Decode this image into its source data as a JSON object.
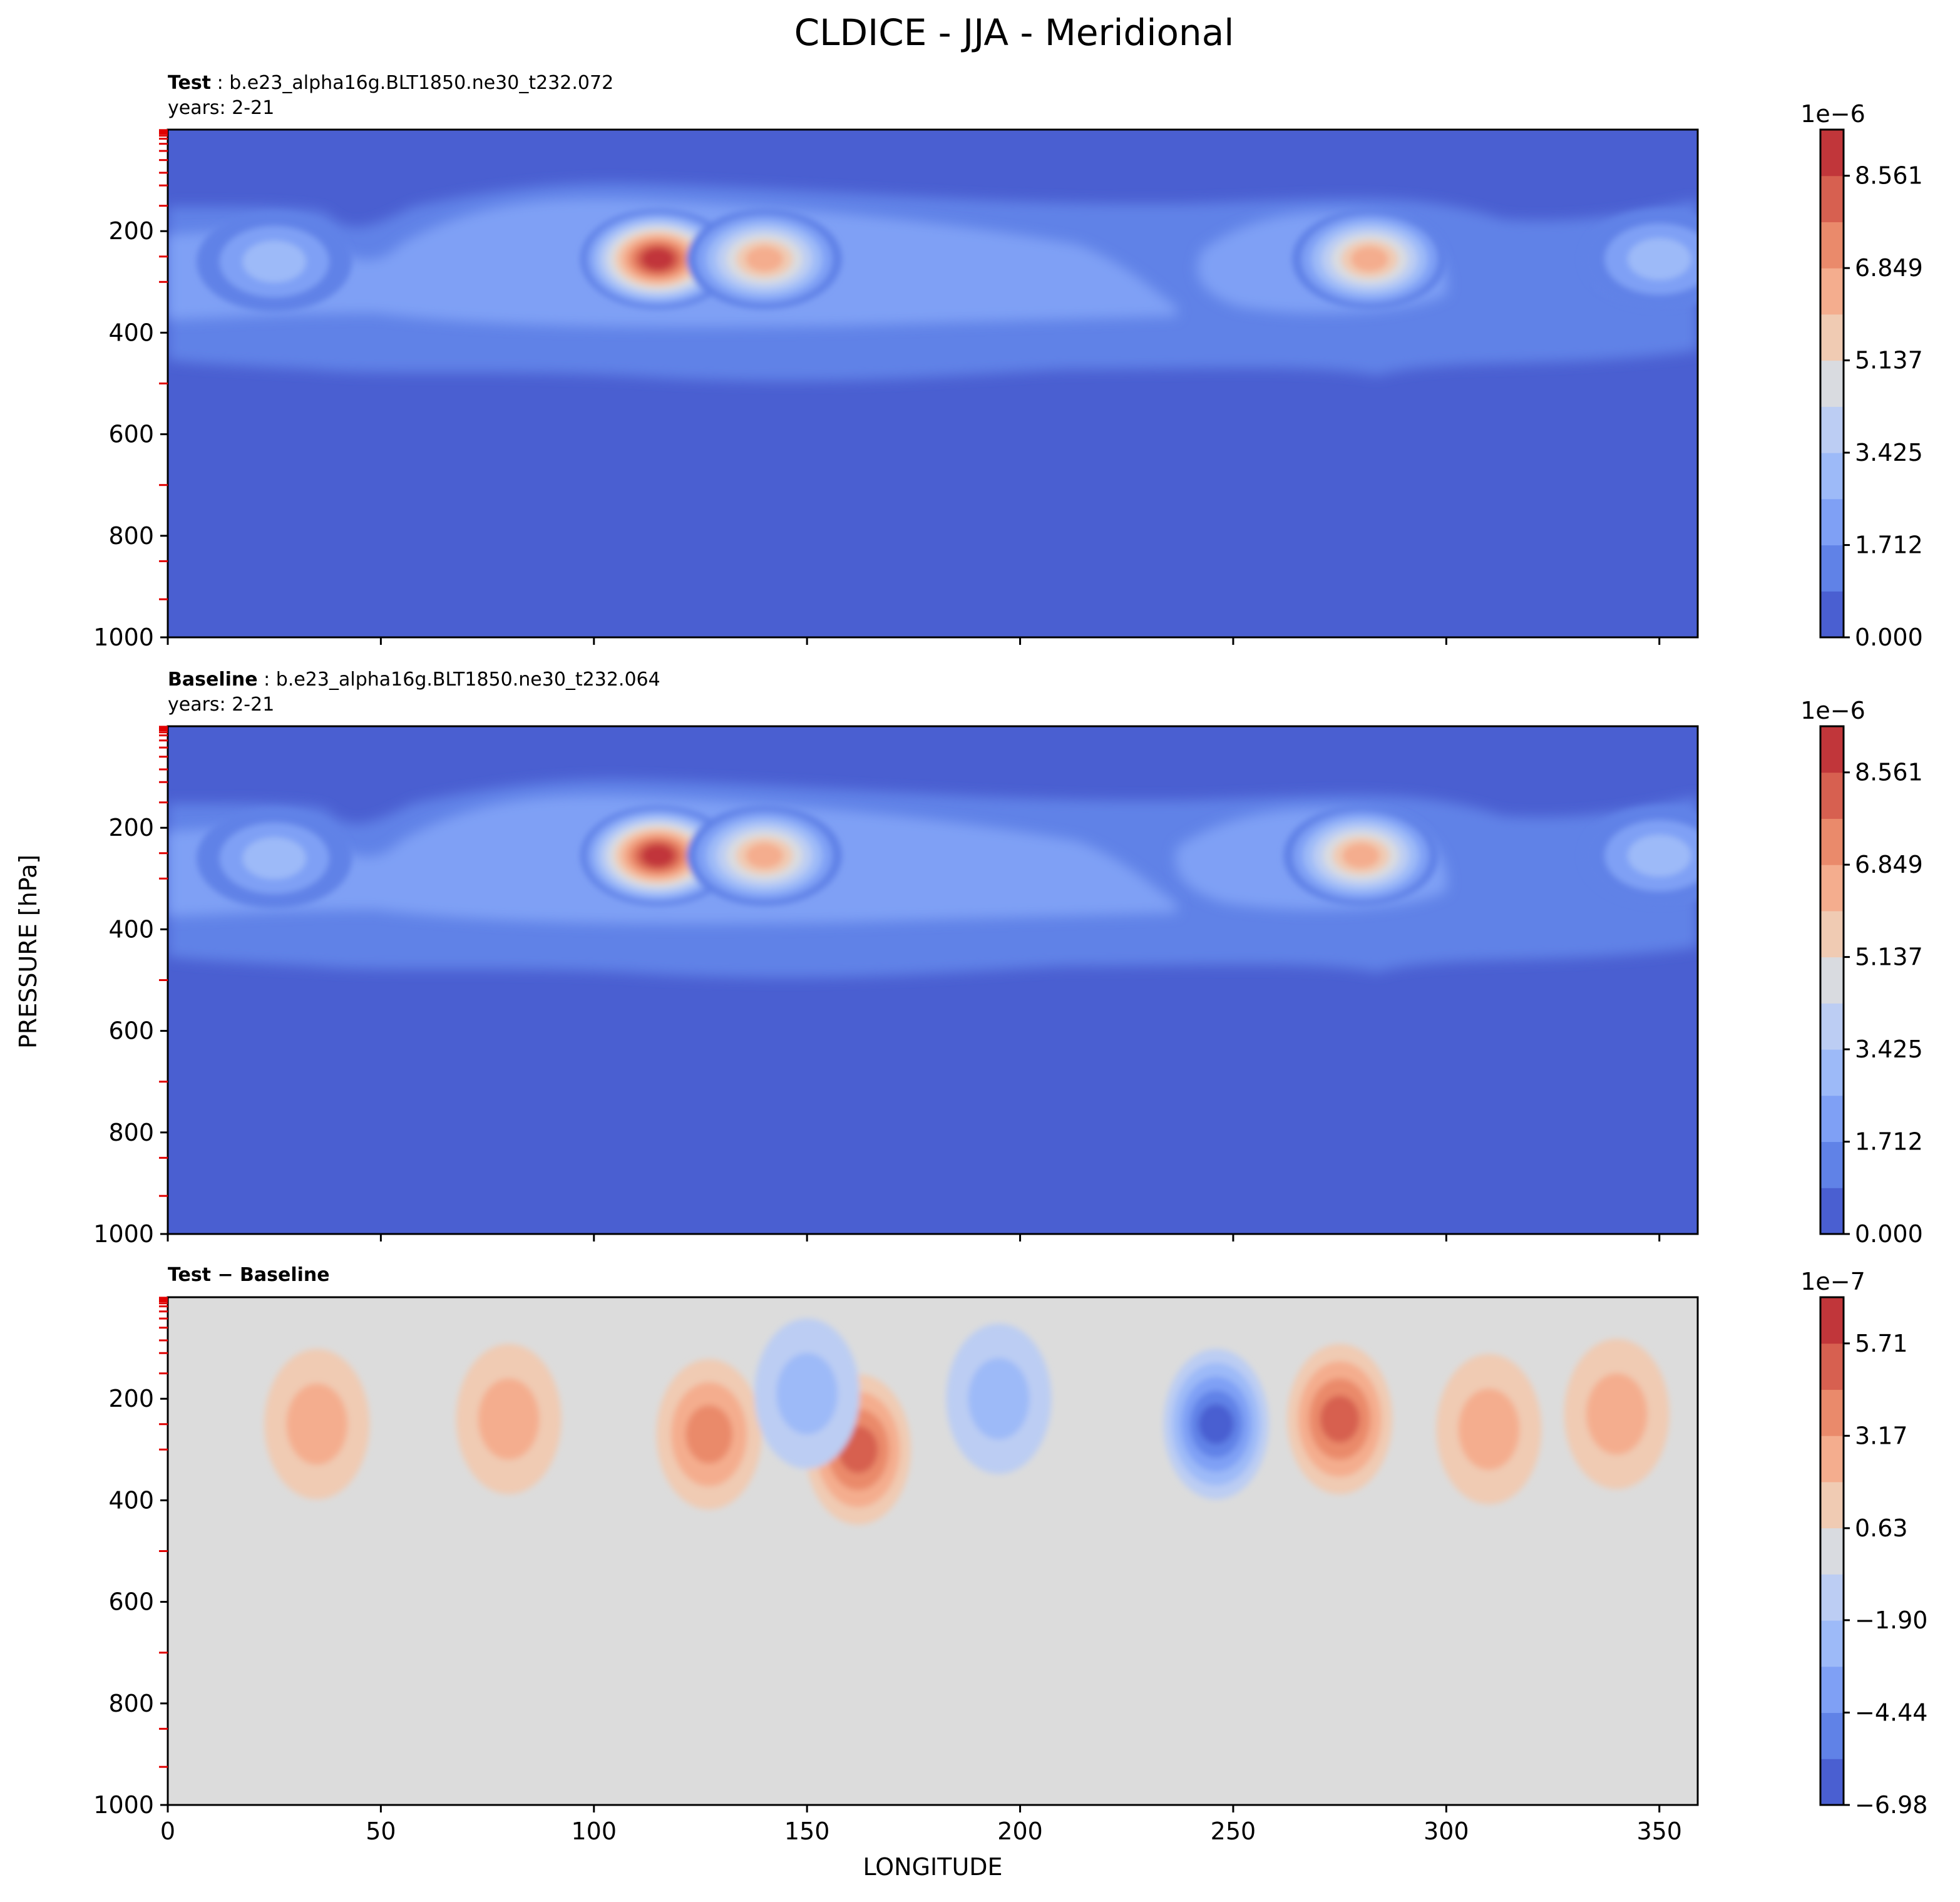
{
  "figure": {
    "title": "CLDICE - JJA - Meridional",
    "ylabel": "PRESSURE [hPa]",
    "xlabel": "LONGITUDE"
  },
  "chart_data": [
    {
      "type": "heatmap",
      "panel": "Test",
      "label_bold": "Test",
      "label_rest": " : b.e23_alpha16g.BLT1850.ne30_t232.072",
      "years": "years: 2-21",
      "xlim": [
        0,
        359
      ],
      "ylim": [
        1000,
        0
      ],
      "xticks": [
        "0",
        "50",
        "100",
        "150",
        "200",
        "250",
        "300",
        "350"
      ],
      "yticks": [
        "200",
        "400",
        "600",
        "800",
        "1000"
      ],
      "colorbar": {
        "exponent": "1e−6",
        "min": 0,
        "max": 9.417,
        "levels": 11,
        "ticks": [
          "0.000",
          "1.712",
          "3.425",
          "5.137",
          "6.849",
          "8.561"
        ],
        "tick_values": [
          0,
          1.712,
          3.425,
          5.137,
          6.849,
          8.561
        ],
        "colors": [
          "#4a5fd1",
          "#6082e7",
          "#7fa0f5",
          "#9dbaf8",
          "#bccdf3",
          "#d9dbe0",
          "#f0cbb3",
          "#f4ad8e",
          "#ea8a6b",
          "#d76050",
          "#c1363a"
        ]
      },
      "features": [
        {
          "lon": 115,
          "p": 255,
          "value": 9.0
        },
        {
          "lon": 140,
          "p": 255,
          "value": 6.5
        },
        {
          "lon": 282,
          "p": 255,
          "value": 6.2
        },
        {
          "lon": 25,
          "p": 260,
          "value": 3.2
        },
        {
          "lon": 350,
          "p": 255,
          "value": 3.0
        }
      ]
    },
    {
      "type": "heatmap",
      "panel": "Baseline",
      "label_bold": "Baseline",
      "label_rest": " : b.e23_alpha16g.BLT1850.ne30_t232.064",
      "years": "years: 2-21",
      "xlim": [
        0,
        359
      ],
      "ylim": [
        1000,
        0
      ],
      "xticks": [
        "0",
        "50",
        "100",
        "150",
        "200",
        "250",
        "300",
        "350"
      ],
      "yticks": [
        "200",
        "400",
        "600",
        "800",
        "1000"
      ],
      "colorbar": {
        "exponent": "1e−6",
        "min": 0,
        "max": 9.417,
        "levels": 11,
        "ticks": [
          "0.000",
          "1.712",
          "3.425",
          "5.137",
          "6.849",
          "8.561"
        ],
        "tick_values": [
          0,
          1.712,
          3.425,
          5.137,
          6.849,
          8.561
        ],
        "colors": [
          "#4a5fd1",
          "#6082e7",
          "#7fa0f5",
          "#9dbaf8",
          "#bccdf3",
          "#d9dbe0",
          "#f0cbb3",
          "#f4ad8e",
          "#ea8a6b",
          "#d76050",
          "#c1363a"
        ]
      },
      "features": [
        {
          "lon": 115,
          "p": 255,
          "value": 9.0
        },
        {
          "lon": 140,
          "p": 255,
          "value": 6.5
        },
        {
          "lon": 280,
          "p": 255,
          "value": 6.0
        },
        {
          "lon": 25,
          "p": 260,
          "value": 3.2
        },
        {
          "lon": 350,
          "p": 255,
          "value": 3.0
        }
      ]
    },
    {
      "type": "heatmap",
      "panel": "Test - Baseline",
      "label_bold": "Test − Baseline",
      "xlim": [
        0,
        359
      ],
      "ylim": [
        1000,
        0
      ],
      "xticks": [
        "0",
        "50",
        "100",
        "150",
        "200",
        "250",
        "300",
        "350"
      ],
      "yticks": [
        "200",
        "400",
        "600",
        "800",
        "1000"
      ],
      "colorbar": {
        "exponent": "1e−7",
        "min": -6.98,
        "max": 6.98,
        "levels": 11,
        "ticks": [
          "−6.98",
          "−4.44",
          "−1.90",
          "0.63",
          "3.17",
          "5.71"
        ],
        "tick_values": [
          -6.98,
          -4.44,
          -1.9,
          0.63,
          3.17,
          5.71
        ],
        "colors": [
          "#4a5fd1",
          "#6082e7",
          "#7fa0f5",
          "#9dbaf8",
          "#bccdf3",
          "#d9dbe0",
          "#f0cbb3",
          "#f4ad8e",
          "#ea8a6b",
          "#d76050",
          "#c1363a"
        ]
      },
      "features": [
        {
          "lon": 35,
          "p": 250,
          "value": 2.5
        },
        {
          "lon": 80,
          "p": 240,
          "value": 2.0
        },
        {
          "lon": 127,
          "p": 270,
          "value": 4.0
        },
        {
          "lon": 162,
          "p": 300,
          "value": 4.5
        },
        {
          "lon": 150,
          "p": 190,
          "value": -2.5
        },
        {
          "lon": 195,
          "p": 200,
          "value": -2.2
        },
        {
          "lon": 246,
          "p": 250,
          "value": -6.5
        },
        {
          "lon": 275,
          "p": 240,
          "value": 4.8
        },
        {
          "lon": 310,
          "p": 260,
          "value": 2.2
        },
        {
          "lon": 340,
          "p": 230,
          "value": 2.0
        }
      ]
    }
  ]
}
